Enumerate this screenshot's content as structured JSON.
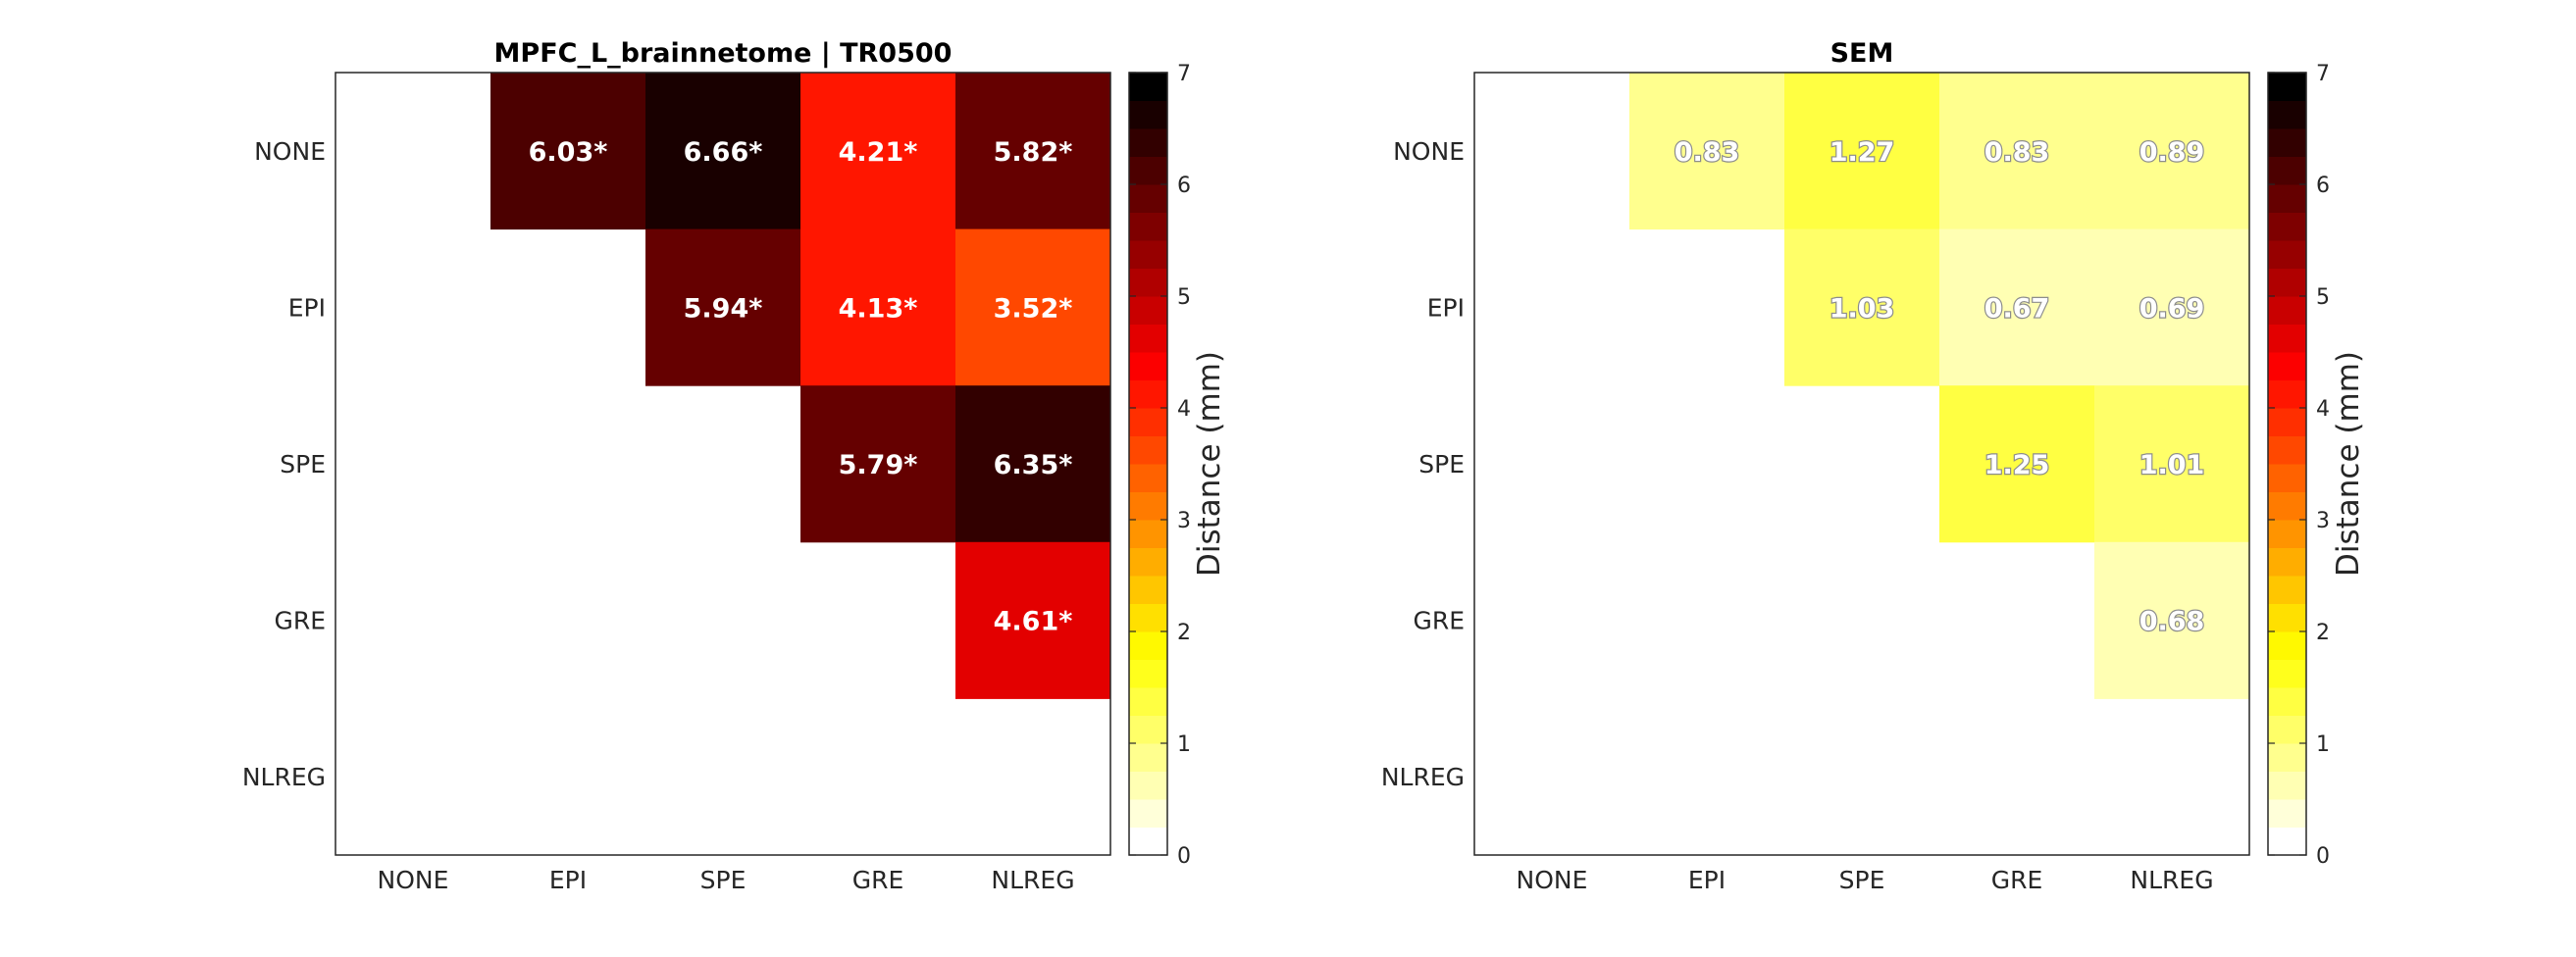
{
  "chart_data": [
    {
      "type": "heatmap",
      "title": "MPFC_L_brainnetome | TR0500",
      "x_categories": [
        "NONE",
        "EPI",
        "SPE",
        "GRE",
        "NLREG"
      ],
      "y_categories": [
        "NONE",
        "EPI",
        "SPE",
        "GRE",
        "NLREG"
      ],
      "values": [
        [
          null,
          6.03,
          6.66,
          4.21,
          5.82
        ],
        [
          null,
          null,
          5.94,
          4.13,
          3.52
        ],
        [
          null,
          null,
          null,
          5.79,
          6.35
        ],
        [
          null,
          null,
          null,
          null,
          4.61
        ],
        [
          null,
          null,
          null,
          null,
          null
        ]
      ],
      "labels": [
        [
          "",
          "6.03*",
          "6.66*",
          "4.21*",
          "5.82*"
        ],
        [
          "",
          "",
          "5.94*",
          "4.13*",
          "3.52*"
        ],
        [
          "",
          "",
          "",
          "5.79*",
          "6.35*"
        ],
        [
          "",
          "",
          "",
          "",
          "4.61*"
        ],
        [
          "",
          "",
          "",
          "",
          ""
        ]
      ],
      "colorbar": {
        "label": "Distance (mm)",
        "range": [
          0,
          7
        ],
        "ticks": [
          "0",
          "1",
          "2",
          "3",
          "4",
          "5",
          "6",
          "7"
        ],
        "colormap": "hot (reversed)",
        "levels": 28
      }
    },
    {
      "type": "heatmap",
      "title": "SEM",
      "x_categories": [
        "NONE",
        "EPI",
        "SPE",
        "GRE",
        "NLREG"
      ],
      "y_categories": [
        "NONE",
        "EPI",
        "SPE",
        "GRE",
        "NLREG"
      ],
      "values": [
        [
          null,
          0.83,
          1.27,
          0.83,
          0.89
        ],
        [
          null,
          null,
          1.03,
          0.67,
          0.69
        ],
        [
          null,
          null,
          null,
          1.25,
          1.01
        ],
        [
          null,
          null,
          null,
          null,
          0.68
        ],
        [
          null,
          null,
          null,
          null,
          null
        ]
      ],
      "labels": [
        [
          "",
          "0.83",
          "1.27",
          "0.83",
          "0.89"
        ],
        [
          "",
          "",
          "1.03",
          "0.67",
          "0.69"
        ],
        [
          "",
          "",
          "",
          "1.25",
          "1.01"
        ],
        [
          "",
          "",
          "",
          "",
          "0.68"
        ],
        [
          "",
          "",
          "",
          "",
          ""
        ]
      ],
      "colorbar": {
        "label": "Distance (mm)",
        "range": [
          0,
          7
        ],
        "ticks": [
          "0",
          "1",
          "2",
          "3",
          "4",
          "5",
          "6",
          "7"
        ],
        "colormap": "hot (reversed)",
        "levels": 28
      }
    }
  ]
}
